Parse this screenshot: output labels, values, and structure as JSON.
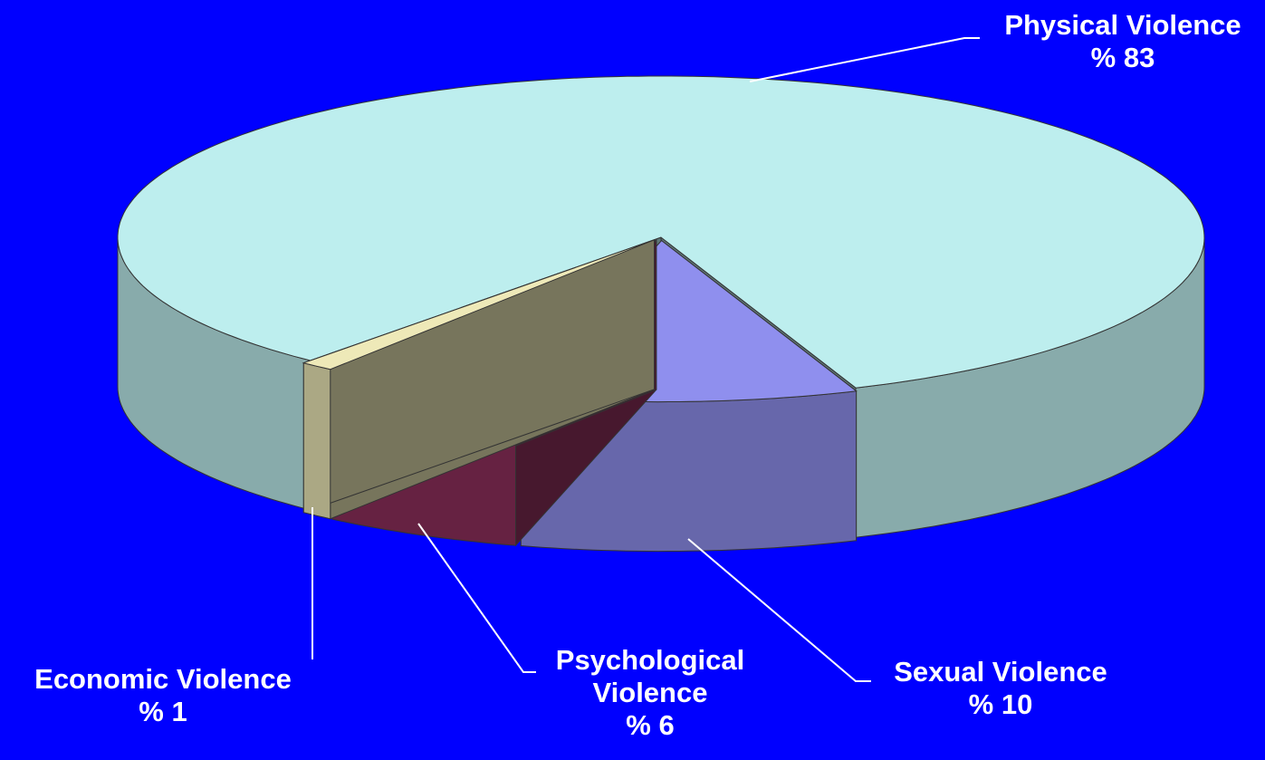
{
  "chart_data": {
    "type": "pie3d",
    "categories": [
      "Sexual Violence",
      "Psychological Violence",
      "Economic Violence",
      "Physical Violence"
    ],
    "values": [
      10,
      6,
      1,
      83
    ],
    "value_labels": [
      "% 10",
      "% 6",
      "% 1",
      "% 83"
    ],
    "colors": [
      "#8f8fee",
      "#8e2f5b",
      "#eee9b8",
      "#bdeeee"
    ]
  }
}
